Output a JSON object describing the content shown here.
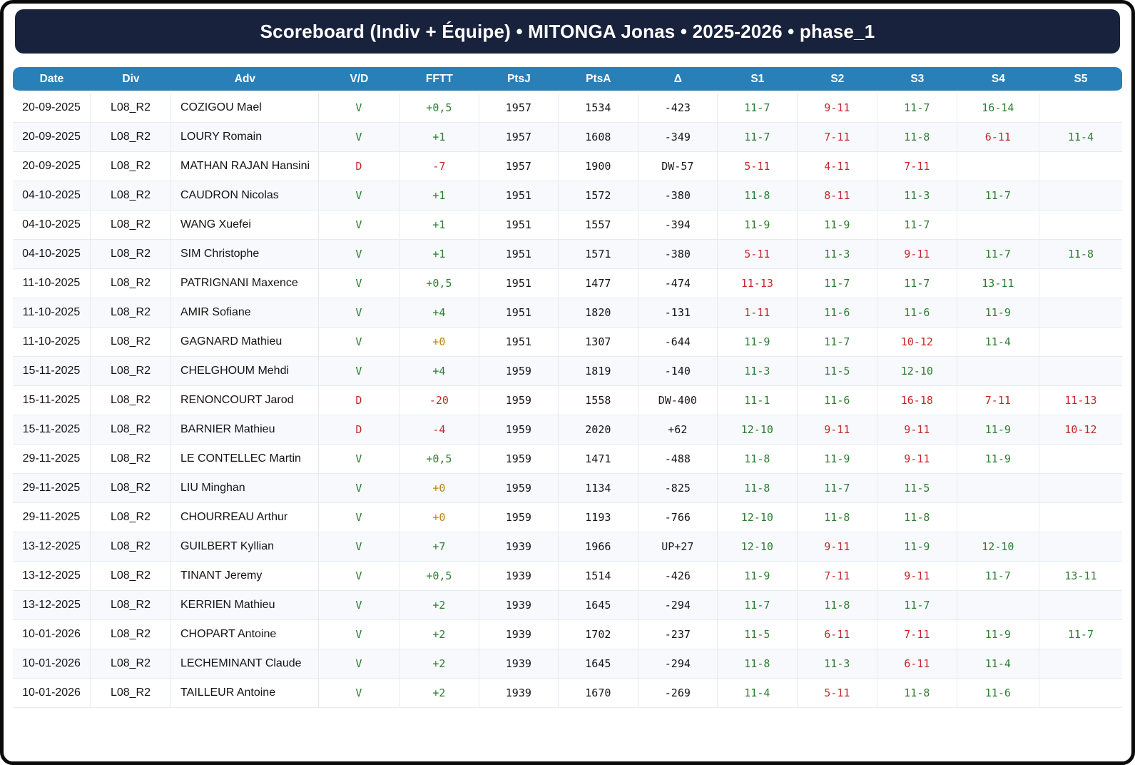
{
  "banner": {
    "title": "Scoreboard (Indiv + Équipe) • MITONGA Jonas • 2025-2026 • phase_1"
  },
  "colors": {
    "banner_bg": "#19223c",
    "header_bg": "#2980b9",
    "win_bg": "#e7f3e9",
    "win_text": "#2e7d32",
    "loss_bg": "#fdeaea",
    "loss_text": "#c62828",
    "zero_bg": "#fdf2da",
    "zero_text": "#b8860b",
    "dw_bg": "#f8b6c0",
    "up_bg": "#b4a0dc",
    "alt_row_bg": "#f7f9fd",
    "grid_line": "#e7ebf1"
  },
  "table": {
    "columns": [
      "Date",
      "Div",
      "Adv",
      "V/D",
      "FFTT",
      "PtsJ",
      "PtsA",
      "Δ",
      "S1",
      "S2",
      "S3",
      "S4",
      "S5"
    ],
    "rows": [
      {
        "date": "20-09-2025",
        "div": "L08_R2",
        "adv": "COZIGOU Mael",
        "vd": "V",
        "fftt": "+0,5",
        "ptsj": "1957",
        "ptsa": "1534",
        "delta": "-423",
        "sets": [
          "11-7",
          "9-11",
          "11-7",
          "16-14",
          ""
        ]
      },
      {
        "date": "20-09-2025",
        "div": "L08_R2",
        "adv": "LOURY Romain",
        "vd": "V",
        "fftt": "+1",
        "ptsj": "1957",
        "ptsa": "1608",
        "delta": "-349",
        "sets": [
          "11-7",
          "7-11",
          "11-8",
          "6-11",
          "11-4"
        ]
      },
      {
        "date": "20-09-2025",
        "div": "L08_R2",
        "adv": "MATHAN RAJAN Hansini",
        "vd": "D",
        "fftt": "-7",
        "ptsj": "1957",
        "ptsa": "1900",
        "delta": "DW-57",
        "sets": [
          "5-11",
          "4-11",
          "7-11",
          "",
          ""
        ]
      },
      {
        "date": "04-10-2025",
        "div": "L08_R2",
        "adv": "CAUDRON Nicolas",
        "vd": "V",
        "fftt": "+1",
        "ptsj": "1951",
        "ptsa": "1572",
        "delta": "-380",
        "sets": [
          "11-8",
          "8-11",
          "11-3",
          "11-7",
          ""
        ]
      },
      {
        "date": "04-10-2025",
        "div": "L08_R2",
        "adv": "WANG Xuefei",
        "vd": "V",
        "fftt": "+1",
        "ptsj": "1951",
        "ptsa": "1557",
        "delta": "-394",
        "sets": [
          "11-9",
          "11-9",
          "11-7",
          "",
          ""
        ]
      },
      {
        "date": "04-10-2025",
        "div": "L08_R2",
        "adv": "SIM Christophe",
        "vd": "V",
        "fftt": "+1",
        "ptsj": "1951",
        "ptsa": "1571",
        "delta": "-380",
        "sets": [
          "5-11",
          "11-3",
          "9-11",
          "11-7",
          "11-8"
        ]
      },
      {
        "date": "11-10-2025",
        "div": "L08_R2",
        "adv": "PATRIGNANI Maxence",
        "vd": "V",
        "fftt": "+0,5",
        "ptsj": "1951",
        "ptsa": "1477",
        "delta": "-474",
        "sets": [
          "11-13",
          "11-7",
          "11-7",
          "13-11",
          ""
        ]
      },
      {
        "date": "11-10-2025",
        "div": "L08_R2",
        "adv": "AMIR Sofiane",
        "vd": "V",
        "fftt": "+4",
        "ptsj": "1951",
        "ptsa": "1820",
        "delta": "-131",
        "sets": [
          "1-11",
          "11-6",
          "11-6",
          "11-9",
          ""
        ]
      },
      {
        "date": "11-10-2025",
        "div": "L08_R2",
        "adv": "GAGNARD Mathieu",
        "vd": "V",
        "fftt": "+0",
        "ptsj": "1951",
        "ptsa": "1307",
        "delta": "-644",
        "sets": [
          "11-9",
          "11-7",
          "10-12",
          "11-4",
          ""
        ]
      },
      {
        "date": "15-11-2025",
        "div": "L08_R2",
        "adv": "CHELGHOUM Mehdi",
        "vd": "V",
        "fftt": "+4",
        "ptsj": "1959",
        "ptsa": "1819",
        "delta": "-140",
        "sets": [
          "11-3",
          "11-5",
          "12-10",
          "",
          ""
        ]
      },
      {
        "date": "15-11-2025",
        "div": "L08_R2",
        "adv": "RENONCOURT Jarod",
        "vd": "D",
        "fftt": "-20",
        "ptsj": "1959",
        "ptsa": "1558",
        "delta": "DW-400",
        "sets": [
          "11-1",
          "11-6",
          "16-18",
          "7-11",
          "11-13"
        ]
      },
      {
        "date": "15-11-2025",
        "div": "L08_R2",
        "adv": "BARNIER Mathieu",
        "vd": "D",
        "fftt": "-4",
        "ptsj": "1959",
        "ptsa": "2020",
        "delta": "+62",
        "sets": [
          "12-10",
          "9-11",
          "9-11",
          "11-9",
          "10-12"
        ]
      },
      {
        "date": "29-11-2025",
        "div": "L08_R2",
        "adv": "LE CONTELLEC Martin",
        "vd": "V",
        "fftt": "+0,5",
        "ptsj": "1959",
        "ptsa": "1471",
        "delta": "-488",
        "sets": [
          "11-8",
          "11-9",
          "9-11",
          "11-9",
          ""
        ]
      },
      {
        "date": "29-11-2025",
        "div": "L08_R2",
        "adv": "LIU Minghan",
        "vd": "V",
        "fftt": "+0",
        "ptsj": "1959",
        "ptsa": "1134",
        "delta": "-825",
        "sets": [
          "11-8",
          "11-7",
          "11-5",
          "",
          ""
        ]
      },
      {
        "date": "29-11-2025",
        "div": "L08_R2",
        "adv": "CHOURREAU Arthur",
        "vd": "V",
        "fftt": "+0",
        "ptsj": "1959",
        "ptsa": "1193",
        "delta": "-766",
        "sets": [
          "12-10",
          "11-8",
          "11-8",
          "",
          ""
        ]
      },
      {
        "date": "13-12-2025",
        "div": "L08_R2",
        "adv": "GUILBERT Kyllian",
        "vd": "V",
        "fftt": "+7",
        "ptsj": "1939",
        "ptsa": "1966",
        "delta": "UP+27",
        "sets": [
          "12-10",
          "9-11",
          "11-9",
          "12-10",
          ""
        ]
      },
      {
        "date": "13-12-2025",
        "div": "L08_R2",
        "adv": "TINANT Jeremy",
        "vd": "V",
        "fftt": "+0,5",
        "ptsj": "1939",
        "ptsa": "1514",
        "delta": "-426",
        "sets": [
          "11-9",
          "7-11",
          "9-11",
          "11-7",
          "13-11"
        ]
      },
      {
        "date": "13-12-2025",
        "div": "L08_R2",
        "adv": "KERRIEN Mathieu",
        "vd": "V",
        "fftt": "+2",
        "ptsj": "1939",
        "ptsa": "1645",
        "delta": "-294",
        "sets": [
          "11-7",
          "11-8",
          "11-7",
          "",
          ""
        ]
      },
      {
        "date": "10-01-2026",
        "div": "L08_R2",
        "adv": "CHOPART Antoine",
        "vd": "V",
        "fftt": "+2",
        "ptsj": "1939",
        "ptsa": "1702",
        "delta": "-237",
        "sets": [
          "11-5",
          "6-11",
          "7-11",
          "11-9",
          "11-7"
        ]
      },
      {
        "date": "10-01-2026",
        "div": "L08_R2",
        "adv": "LECHEMINANT Claude",
        "vd": "V",
        "fftt": "+2",
        "ptsj": "1939",
        "ptsa": "1645",
        "delta": "-294",
        "sets": [
          "11-8",
          "11-3",
          "6-11",
          "11-4",
          ""
        ]
      },
      {
        "date": "10-01-2026",
        "div": "L08_R2",
        "adv": "TAILLEUR Antoine",
        "vd": "V",
        "fftt": "+2",
        "ptsj": "1939",
        "ptsa": "1670",
        "delta": "-269",
        "sets": [
          "11-4",
          "5-11",
          "11-8",
          "11-6",
          ""
        ]
      }
    ]
  }
}
